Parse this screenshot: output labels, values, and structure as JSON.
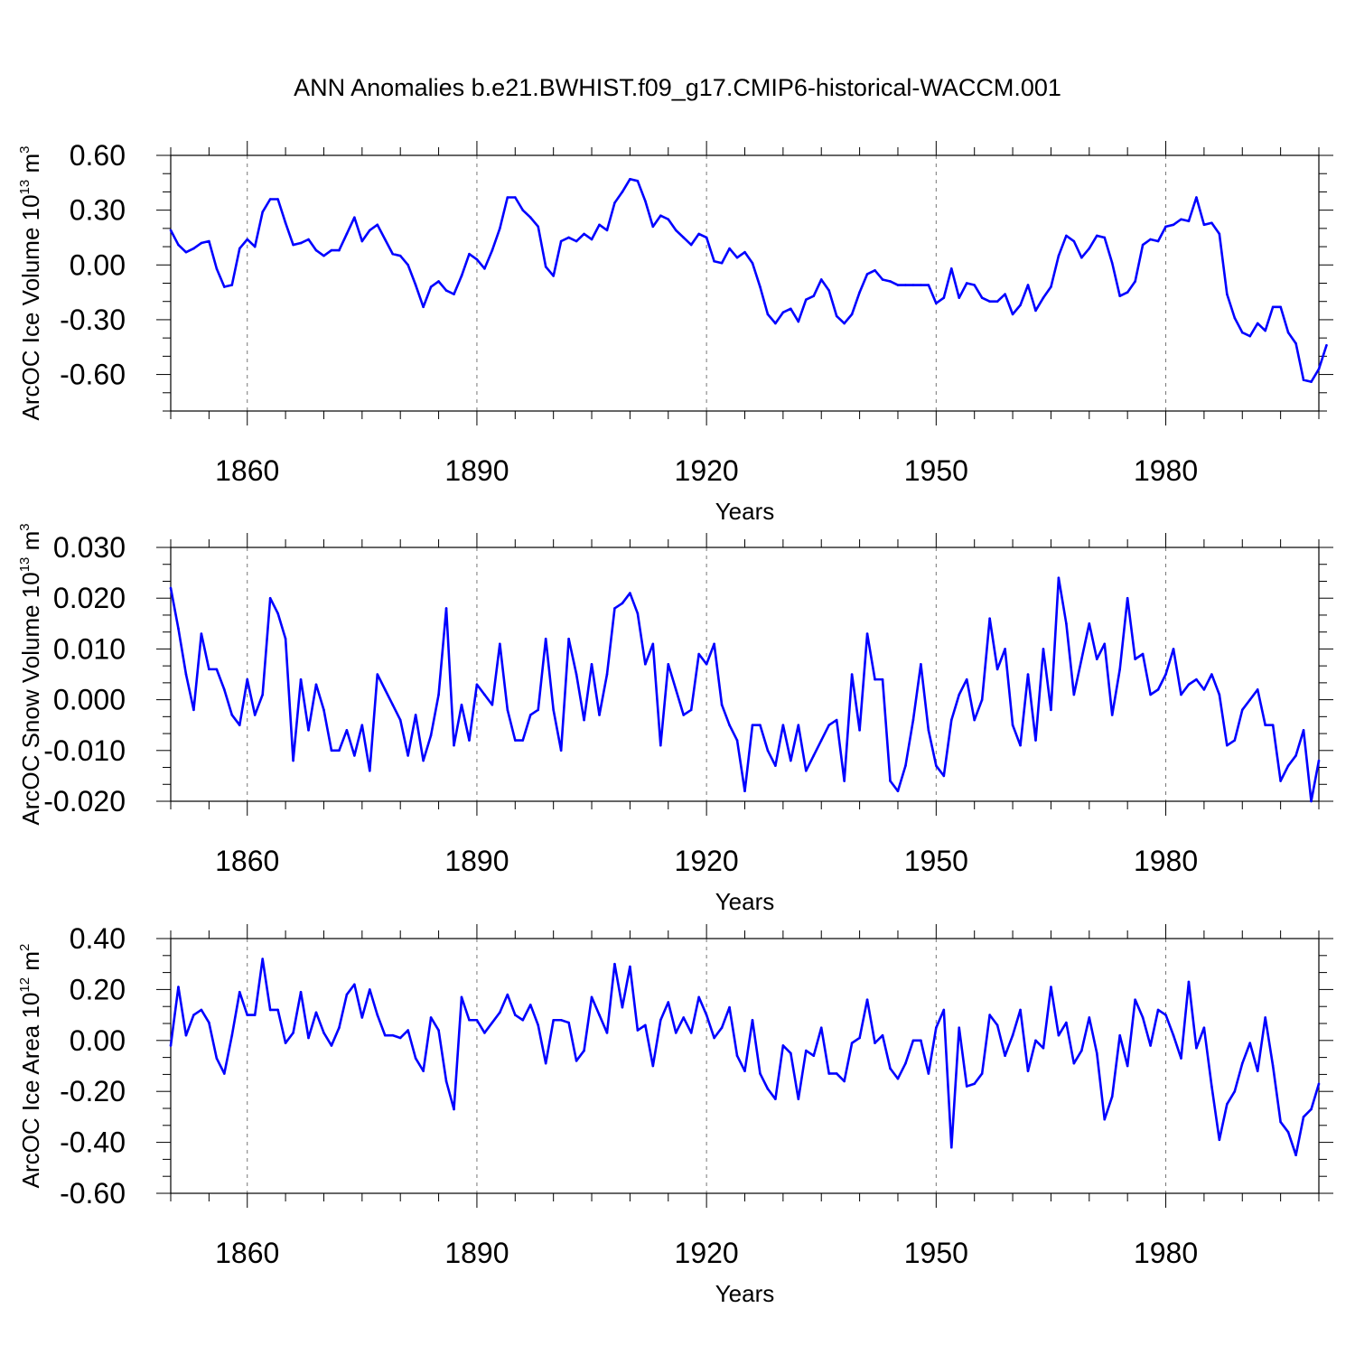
{
  "figure": {
    "title": "ANN Anomalies b.e21.BWHIST.f09_g17.CMIP6-historical-WACCM.001"
  },
  "chart_data": [
    {
      "type": "line",
      "ylabel": "ArcOC Ice Volume 10",
      "ylabel_exp": "13",
      "ylabel_unit": "m",
      "ylabel_unit_exp": "3",
      "xlabel": "Years",
      "xlim": [
        1850,
        2000
      ],
      "ylim": [
        -0.8,
        0.6
      ],
      "yticks": [
        0.6,
        0.3,
        0.0,
        -0.3,
        -0.6
      ],
      "ytick_labels": [
        "0.60",
        "0.30",
        "0.00",
        "-0.30",
        "-0.60"
      ],
      "xticks": [
        1860,
        1890,
        1920,
        1950,
        1980
      ],
      "xtick_labels": [
        "1860",
        "1890",
        "1920",
        "1950",
        "1980"
      ],
      "color": "#0000ff",
      "series": [
        {
          "name": "Ice Volume",
          "x_start": 1850,
          "values": [
            0.19,
            0.11,
            0.07,
            0.09,
            0.12,
            0.13,
            -0.02,
            -0.12,
            -0.11,
            0.09,
            0.14,
            0.1,
            0.29,
            0.36,
            0.36,
            0.23,
            0.11,
            0.12,
            0.14,
            0.08,
            0.05,
            0.08,
            0.08,
            0.17,
            0.26,
            0.13,
            0.19,
            0.22,
            0.14,
            0.06,
            0.05,
            0.0,
            -0.11,
            -0.23,
            -0.12,
            -0.09,
            -0.14,
            -0.16,
            -0.06,
            0.06,
            0.03,
            -0.02,
            0.08,
            0.2,
            0.37,
            0.37,
            0.3,
            0.26,
            0.21,
            -0.01,
            -0.06,
            0.13,
            0.15,
            0.13,
            0.17,
            0.14,
            0.22,
            0.19,
            0.34,
            0.4,
            0.47,
            0.46,
            0.35,
            0.21,
            0.27,
            0.25,
            0.19,
            0.15,
            0.11,
            0.17,
            0.15,
            0.02,
            0.01,
            0.09,
            0.04,
            0.07,
            0.01,
            -0.12,
            -0.27,
            -0.32,
            -0.26,
            -0.24,
            -0.31,
            -0.19,
            -0.17,
            -0.08,
            -0.14,
            -0.28,
            -0.32,
            -0.27,
            -0.15,
            -0.05,
            -0.03,
            -0.08,
            -0.09,
            -0.11,
            -0.11,
            -0.11,
            -0.11,
            -0.11,
            -0.21,
            -0.18,
            -0.02,
            -0.18,
            -0.1,
            -0.11,
            -0.18,
            -0.2,
            -0.2,
            -0.16,
            -0.27,
            -0.22,
            -0.11,
            -0.25,
            -0.18,
            -0.12,
            0.05,
            0.16,
            0.13,
            0.04,
            0.09,
            0.16,
            0.15,
            0.01,
            -0.17,
            -0.15,
            -0.09,
            0.11,
            0.14,
            0.13,
            0.21,
            0.22,
            0.25,
            0.24,
            0.37,
            0.22,
            0.23,
            0.17,
            -0.16,
            -0.29,
            -0.37,
            -0.39,
            -0.32,
            -0.36,
            -0.23,
            -0.23,
            -0.37,
            -0.43,
            -0.63,
            -0.64,
            -0.57,
            -0.44
          ]
        }
      ]
    },
    {
      "type": "line",
      "ylabel": "ArcOC Snow Volume 10",
      "ylabel_exp": "13",
      "ylabel_unit": "m",
      "ylabel_unit_exp": "3",
      "xlabel": "Years",
      "xlim": [
        1850,
        2000
      ],
      "ylim": [
        -0.02,
        0.03
      ],
      "yticks": [
        0.03,
        0.02,
        0.01,
        0.0,
        -0.01,
        -0.02
      ],
      "ytick_labels": [
        "0.030",
        "0.020",
        "0.010",
        "0.000",
        "-0.010",
        "-0.020"
      ],
      "xticks": [
        1860,
        1890,
        1920,
        1950,
        1980
      ],
      "xtick_labels": [
        "1860",
        "1890",
        "1920",
        "1950",
        "1980"
      ],
      "color": "#0000ff",
      "series": [
        {
          "name": "Snow Volume",
          "x_start": 1850,
          "values": [
            0.022,
            0.014,
            0.005,
            -0.002,
            0.013,
            0.006,
            0.006,
            0.002,
            -0.003,
            -0.005,
            0.004,
            -0.003,
            0.001,
            0.02,
            0.017,
            0.012,
            -0.012,
            0.004,
            -0.006,
            0.003,
            -0.002,
            -0.01,
            -0.01,
            -0.006,
            -0.011,
            -0.005,
            -0.014,
            0.005,
            0.002,
            -0.001,
            -0.004,
            -0.011,
            -0.003,
            -0.012,
            -0.007,
            0.001,
            0.018,
            -0.009,
            -0.001,
            -0.008,
            0.003,
            0.001,
            -0.001,
            0.011,
            -0.002,
            -0.008,
            -0.008,
            -0.003,
            -0.002,
            0.012,
            -0.002,
            -0.01,
            0.012,
            0.005,
            -0.004,
            0.007,
            -0.003,
            0.005,
            0.018,
            0.019,
            0.021,
            0.017,
            0.007,
            0.011,
            -0.009,
            0.007,
            0.002,
            -0.003,
            -0.002,
            0.009,
            0.007,
            0.011,
            -0.001,
            -0.005,
            -0.008,
            -0.018,
            -0.005,
            -0.005,
            -0.01,
            -0.013,
            -0.005,
            -0.012,
            -0.005,
            -0.014,
            -0.011,
            -0.008,
            -0.005,
            -0.004,
            -0.016,
            0.005,
            -0.006,
            0.013,
            0.004,
            0.004,
            -0.016,
            -0.018,
            -0.013,
            -0.004,
            0.007,
            -0.006,
            -0.013,
            -0.015,
            -0.004,
            0.001,
            0.004,
            -0.004,
            0.0,
            0.016,
            0.006,
            0.01,
            -0.005,
            -0.009,
            0.005,
            -0.008,
            0.01,
            -0.002,
            0.024,
            0.015,
            0.001,
            0.008,
            0.015,
            0.008,
            0.011,
            -0.003,
            0.006,
            0.02,
            0.008,
            0.009,
            0.001,
            0.002,
            0.005,
            0.01,
            0.001,
            0.003,
            0.004,
            0.002,
            0.005,
            0.001,
            -0.009,
            -0.008,
            -0.002,
            0.0,
            0.002,
            -0.005,
            -0.005,
            -0.016,
            -0.013,
            -0.011,
            -0.006,
            -0.02,
            -0.012
          ]
        }
      ]
    },
    {
      "type": "line",
      "ylabel": "ArcOC Ice Area 10",
      "ylabel_exp": "12",
      "ylabel_unit": "m",
      "ylabel_unit_exp": "2",
      "xlabel": "Years",
      "xlim": [
        1850,
        2000
      ],
      "ylim": [
        -0.6,
        0.4
      ],
      "yticks": [
        0.4,
        0.2,
        0.0,
        -0.2,
        -0.4,
        -0.6
      ],
      "ytick_labels": [
        "0.40",
        "0.20",
        "0.00",
        "-0.20",
        "-0.40",
        "-0.60"
      ],
      "xticks": [
        1860,
        1890,
        1920,
        1950,
        1980
      ],
      "xtick_labels": [
        "1860",
        "1890",
        "1920",
        "1950",
        "1980"
      ],
      "color": "#0000ff",
      "series": [
        {
          "name": "Ice Area",
          "x_start": 1850,
          "values": [
            -0.02,
            0.21,
            0.02,
            0.1,
            0.12,
            0.07,
            -0.07,
            -0.13,
            0.02,
            0.19,
            0.1,
            0.1,
            0.32,
            0.12,
            0.12,
            -0.01,
            0.03,
            0.19,
            0.01,
            0.11,
            0.03,
            -0.02,
            0.05,
            0.18,
            0.22,
            0.09,
            0.2,
            0.1,
            0.02,
            0.02,
            0.01,
            0.04,
            -0.07,
            -0.12,
            0.09,
            0.04,
            -0.16,
            -0.27,
            0.17,
            0.08,
            0.08,
            0.03,
            0.07,
            0.11,
            0.18,
            0.1,
            0.08,
            0.14,
            0.06,
            -0.09,
            0.08,
            0.08,
            0.07,
            -0.08,
            -0.04,
            0.17,
            0.1,
            0.03,
            0.3,
            0.13,
            0.29,
            0.04,
            0.06,
            -0.1,
            0.08,
            0.15,
            0.03,
            0.09,
            0.03,
            0.17,
            0.1,
            0.01,
            0.05,
            0.13,
            -0.06,
            -0.12,
            0.08,
            -0.13,
            -0.19,
            -0.23,
            -0.02,
            -0.05,
            -0.23,
            -0.04,
            -0.06,
            0.05,
            -0.13,
            -0.13,
            -0.16,
            -0.01,
            0.01,
            0.16,
            -0.01,
            0.02,
            -0.11,
            -0.15,
            -0.09,
            0.0,
            0.0,
            -0.13,
            0.05,
            0.12,
            -0.42,
            0.05,
            -0.18,
            -0.17,
            -0.13,
            0.1,
            0.06,
            -0.06,
            0.02,
            0.12,
            -0.12,
            0.0,
            -0.03,
            0.21,
            0.02,
            0.07,
            -0.09,
            -0.04,
            0.09,
            -0.05,
            -0.31,
            -0.22,
            0.02,
            -0.1,
            0.16,
            0.09,
            -0.02,
            0.12,
            0.1,
            0.02,
            -0.07,
            0.23,
            -0.03,
            0.05,
            -0.18,
            -0.39,
            -0.25,
            -0.2,
            -0.09,
            -0.01,
            -0.12,
            0.09,
            -0.1,
            -0.32,
            -0.36,
            -0.45,
            -0.3,
            -0.27,
            -0.17
          ]
        }
      ]
    }
  ]
}
